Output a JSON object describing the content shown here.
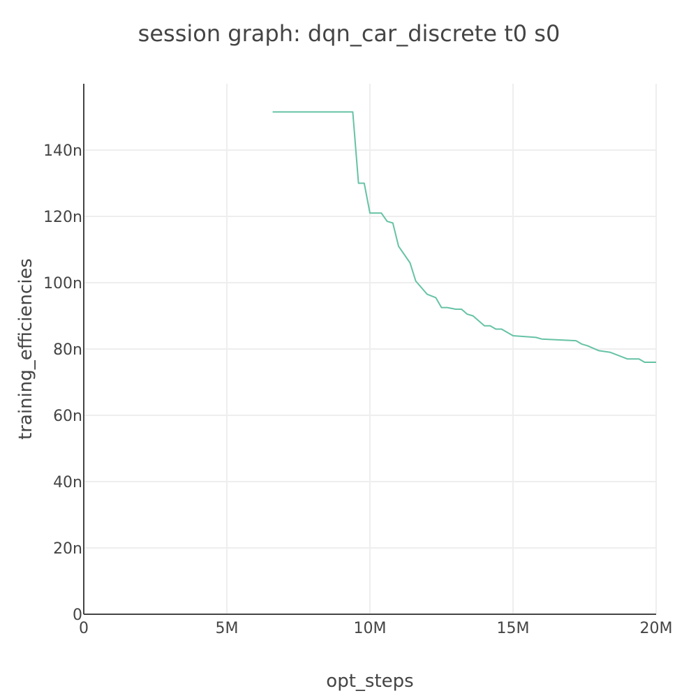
{
  "chart_data": {
    "type": "line",
    "title": "session graph: dqn_car_discrete t0 s0",
    "xlabel": "opt_steps",
    "ylabel": "training_efficiencies",
    "xlim": [
      0,
      20000000
    ],
    "ylim": [
      0,
      160
    ],
    "y_unit_note": "values in nano units",
    "grid": true,
    "x_ticks": [
      {
        "value": 0,
        "label": "0"
      },
      {
        "value": 5000000,
        "label": "5M"
      },
      {
        "value": 10000000,
        "label": "10M"
      },
      {
        "value": 15000000,
        "label": "15M"
      },
      {
        "value": 20000000,
        "label": "20M"
      }
    ],
    "y_ticks": [
      {
        "value": 0,
        "label": "0"
      },
      {
        "value": 20,
        "label": "20n"
      },
      {
        "value": 40,
        "label": "40n"
      },
      {
        "value": 60,
        "label": "60n"
      },
      {
        "value": 80,
        "label": "80n"
      },
      {
        "value": 100,
        "label": "100n"
      },
      {
        "value": 120,
        "label": "120n"
      },
      {
        "value": 140,
        "label": "140n"
      }
    ],
    "series": [
      {
        "color": "#66c2a5",
        "x": [
          6600000,
          9400000,
          9600000,
          9800000,
          10000000,
          10400000,
          10600000,
          10800000,
          11000000,
          11400000,
          11600000,
          12000000,
          12300000,
          12500000,
          12700000,
          13000000,
          13200000,
          13400000,
          13600000,
          14000000,
          14200000,
          14400000,
          14600000,
          15000000,
          15800000,
          16000000,
          16500000,
          17200000,
          17400000,
          17600000,
          18000000,
          18400000,
          19000000,
          19400000,
          19600000,
          20000000
        ],
        "y": [
          151.5,
          151.5,
          130,
          130,
          121,
          121,
          118.5,
          118,
          111,
          106,
          100.5,
          96.5,
          95.5,
          92.5,
          92.5,
          92,
          92,
          90.5,
          90,
          87,
          87,
          86,
          86,
          84,
          83.5,
          83,
          82.8,
          82.5,
          81.5,
          81,
          79.5,
          79,
          77,
          77,
          76,
          76
        ]
      }
    ]
  }
}
